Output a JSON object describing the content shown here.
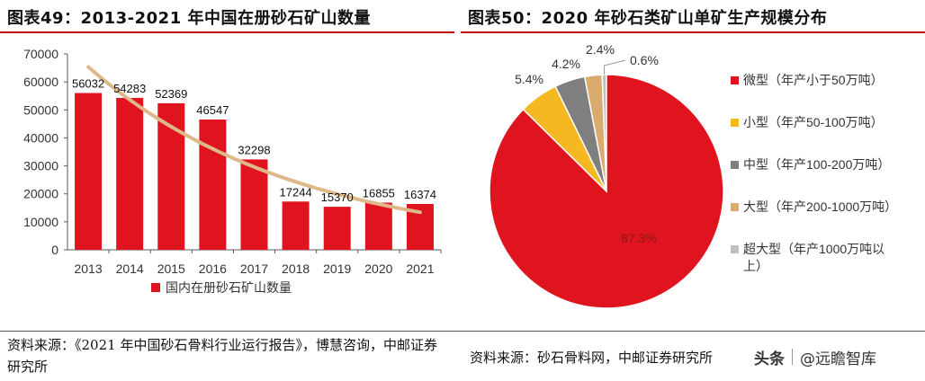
{
  "left": {
    "title": "图表49：2013-2021 年中国在册砂石矿山数量",
    "source": "资料来源：《2021 年中国砂石骨料行业运行报告》，博慧咨询，中邮证券研究所"
  },
  "right": {
    "title": "图表50：2020 年砂石类矿山单矿生产规模分布",
    "source": "资料来源：砂石骨料网，中邮证券研究所"
  },
  "watermark": {
    "logo": "头条",
    "text": "@远瞻智库"
  },
  "colors": {
    "bar": "#e0141e",
    "trend": "#ddb98a",
    "title_rule": "#c00000",
    "small": "#f5b820",
    "medium": "#7f7f7f",
    "large": "#d9ab6f",
    "xlarge": "#bfbfbf"
  },
  "chart_data": [
    {
      "type": "bar",
      "categories": [
        "2013",
        "2014",
        "2015",
        "2016",
        "2017",
        "2018",
        "2019",
        "2020",
        "2021"
      ],
      "series": [
        {
          "name": "国内在册砂石矿山数量",
          "values": [
            56032,
            54283,
            52369,
            46547,
            32298,
            17244,
            15370,
            16855,
            16374
          ],
          "labels": [
            "56032",
            "54283",
            "52369",
            "46547",
            "32298",
            "17244",
            "15370",
            "16855",
            "16374"
          ]
        }
      ],
      "trendline": "exponential",
      "ylim": [
        0,
        70000
      ],
      "yticks": [
        "0",
        "10000",
        "20000",
        "30000",
        "40000",
        "50000",
        "60000",
        "70000"
      ],
      "grid": false,
      "legend": "bottom"
    },
    {
      "type": "pie",
      "labels": [
        "微型（年产小于50万吨）",
        "小型（年产50-100万吨）",
        "中型（年产100-200万吨）",
        "大型（年产200-1000万吨）",
        "超大型（年产1000万吨以上）"
      ],
      "legend_lines": [
        [
          "微型（年产小于50万吨）"
        ],
        [
          "小型（年产50-100万吨）"
        ],
        [
          "中型（年产100-200万吨）"
        ],
        [
          "大型（年产200-1000万吨）"
        ],
        [
          "超大型（年产1000万吨以",
          "上）"
        ]
      ],
      "values": [
        87.3,
        5.4,
        4.2,
        2.4,
        0.6
      ],
      "value_labels": [
        "87.3%",
        "5.4%",
        "4.2%",
        "2.4%",
        "0.6%"
      ],
      "legend": "right"
    }
  ]
}
